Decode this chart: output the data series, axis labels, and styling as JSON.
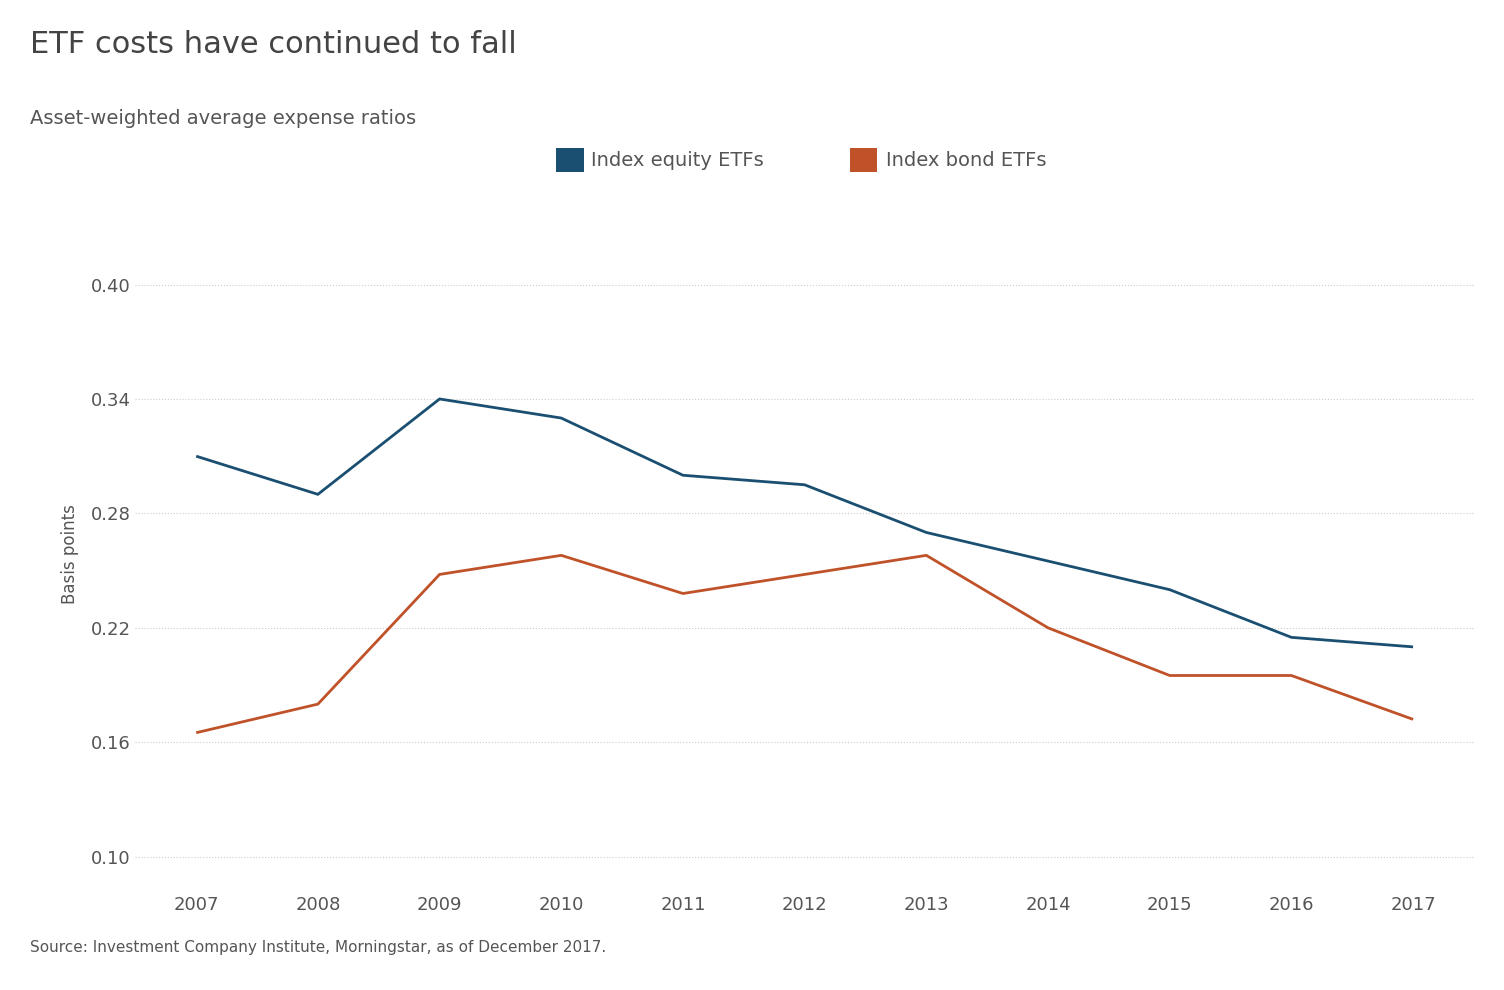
{
  "title": "ETF costs have continued to fall",
  "subtitle": "Asset-weighted average expense ratios",
  "source": "Source: Investment Company Institute, Morningstar, as of December 2017.",
  "ylabel": "Basis points",
  "years": [
    2007,
    2008,
    2009,
    2010,
    2011,
    2012,
    2013,
    2014,
    2015,
    2016,
    2017
  ],
  "equity_etf": [
    0.31,
    0.29,
    0.34,
    0.33,
    0.3,
    0.295,
    0.27,
    0.255,
    0.24,
    0.215,
    0.21
  ],
  "bond_etf": [
    0.165,
    0.18,
    0.248,
    0.258,
    0.238,
    0.248,
    0.258,
    0.22,
    0.195,
    0.195,
    0.172
  ],
  "equity_color": "#1a4f72",
  "bond_color": "#c0522a",
  "yticks": [
    0.1,
    0.16,
    0.22,
    0.28,
    0.34,
    0.4
  ],
  "ylim": [
    0.082,
    0.435
  ],
  "xlim_left": 2006.5,
  "xlim_right": 2017.5,
  "background_color": "#ffffff",
  "grid_color": "#cccccc",
  "title_fontsize": 22,
  "subtitle_fontsize": 14,
  "axis_label_fontsize": 12,
  "legend_fontsize": 14,
  "tick_fontsize": 13,
  "source_fontsize": 11,
  "line_width": 2.0,
  "legend_label_equity": "Index equity ETFs",
  "legend_label_bond": "Index bond ETFs",
  "text_color": "#555555",
  "title_color": "#444444"
}
